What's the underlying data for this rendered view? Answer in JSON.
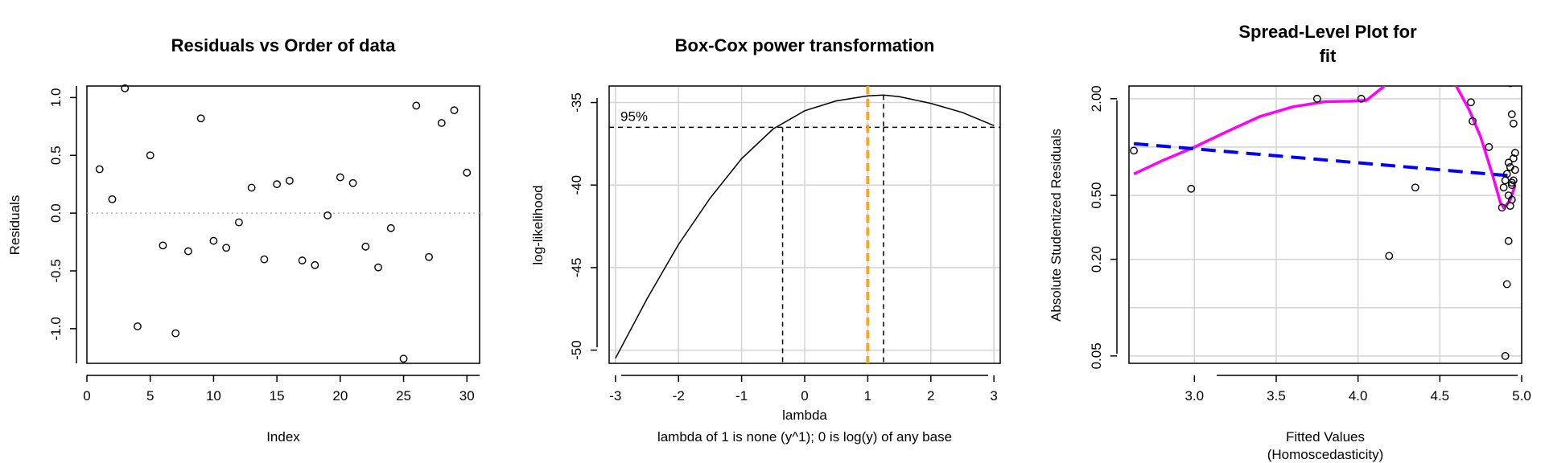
{
  "chart_data": [
    {
      "type": "scatter",
      "title": "Residuals vs Order of data",
      "xlabel": "Index",
      "ylabel": "Residuals",
      "xlim": [
        0,
        31
      ],
      "ylim": [
        -1.3,
        1.1
      ],
      "xticks": [
        "0",
        "5",
        "10",
        "15",
        "20",
        "25",
        "30"
      ],
      "yticks": [
        "-1.0",
        "-0.5",
        "0.0",
        "0.5",
        "1.0"
      ],
      "x": [
        1,
        2,
        3,
        4,
        5,
        6,
        7,
        8,
        9,
        10,
        11,
        12,
        13,
        14,
        15,
        16,
        17,
        18,
        19,
        20,
        21,
        22,
        23,
        24,
        25,
        26,
        27,
        28,
        29,
        30
      ],
      "y": [
        0.38,
        0.12,
        1.08,
        -0.98,
        0.5,
        -0.28,
        -1.04,
        -0.33,
        0.82,
        -0.24,
        -0.3,
        -0.08,
        0.22,
        -0.4,
        0.25,
        0.28,
        -0.41,
        -0.45,
        -0.02,
        0.31,
        0.26,
        -0.29,
        -0.47,
        -0.13,
        -1.26,
        0.93,
        -0.38,
        0.78,
        0.89,
        0.35
      ],
      "reference_line": 0,
      "grid": false
    },
    {
      "type": "line",
      "title": "Box-Cox power transformation",
      "xlabel": "lambda",
      "subtitle": "lambda of 1 is none (y^1); 0 is log(y) of any base",
      "ylabel": "log-likelihood",
      "xlim": [
        -3.1,
        3.1
      ],
      "ylim": [
        -50.8,
        -34
      ],
      "xticks": [
        "-3",
        "-2",
        "-1",
        "0",
        "1",
        "2",
        "3"
      ],
      "yticks": [
        "-50",
        "-45",
        "-40",
        "-35"
      ],
      "x": [
        -3.0,
        -2.5,
        -2.0,
        -1.5,
        -1.0,
        -0.5,
        0.0,
        0.5,
        1.0,
        1.25,
        1.5,
        2.0,
        2.5,
        3.0
      ],
      "y": [
        -50.5,
        -46.9,
        -43.6,
        -40.8,
        -38.4,
        -36.6,
        -35.5,
        -34.9,
        -34.6,
        -34.55,
        -34.65,
        -35.05,
        -35.6,
        -36.4
      ],
      "ci_label": "95%",
      "ci_level": -36.5,
      "ci_bounds": [
        -0.35,
        1.25
      ],
      "max_lambda": 1.25,
      "highlight_lambda": 1,
      "highlight_color": "#f5a623",
      "grid": true
    },
    {
      "type": "scatter",
      "title_lines": [
        "Spread-Level Plot for",
        "fit"
      ],
      "xlabel_lines": [
        "Fitted Values",
        "(Homoscedasticity)"
      ],
      "ylabel": "Absolute Studentized Residuals",
      "xlim": [
        2.6,
        5.0
      ],
      "ylim_log": [
        0.045,
        2.4
      ],
      "xticks": [
        "3.0",
        "3.5",
        "4.0",
        "4.5",
        "5.0"
      ],
      "yticks": [
        "0.05",
        "0.20",
        "0.50",
        "2.00"
      ],
      "grid": true,
      "x": [
        2.63,
        2.98,
        3.75,
        4.02,
        4.19,
        4.35,
        4.69,
        4.7,
        4.8,
        4.88,
        4.89,
        4.9,
        4.91,
        4.92,
        4.93,
        4.94,
        4.95,
        4.96,
        4.94,
        4.93,
        4.92,
        4.91,
        4.9,
        4.95,
        4.94,
        4.93,
        4.92,
        4.96,
        4.95,
        4.94
      ],
      "y": [
        0.95,
        0.55,
        2.0,
        2.0,
        0.21,
        0.56,
        1.9,
        1.45,
        1.0,
        0.42,
        0.56,
        0.62,
        0.68,
        0.8,
        2.5,
        1.6,
        1.4,
        0.92,
        0.47,
        0.43,
        0.26,
        0.14,
        0.05,
        0.85,
        0.6,
        0.75,
        0.5,
        0.72,
        0.62,
        0.58
      ],
      "trend_color": "#0000ff",
      "trend": {
        "x": [
          2.63,
          4.95
        ],
        "y": [
          1.05,
          0.66
        ]
      },
      "smooth_color": "#ff00ff",
      "smooth": {
        "x": [
          2.63,
          2.8,
          3.0,
          3.2,
          3.4,
          3.6,
          3.8,
          3.95,
          4.05,
          4.15,
          4.3,
          4.45,
          4.6,
          4.68,
          4.75,
          4.82,
          4.87,
          4.89,
          4.91,
          4.93,
          4.96
        ],
        "y": [
          0.68,
          0.82,
          1.0,
          1.25,
          1.55,
          1.78,
          1.92,
          1.93,
          1.95,
          2.35,
          3.5,
          3.3,
          2.4,
          1.7,
          1.15,
          0.68,
          0.45,
          0.42,
          0.44,
          0.47,
          0.58
        ]
      }
    }
  ]
}
